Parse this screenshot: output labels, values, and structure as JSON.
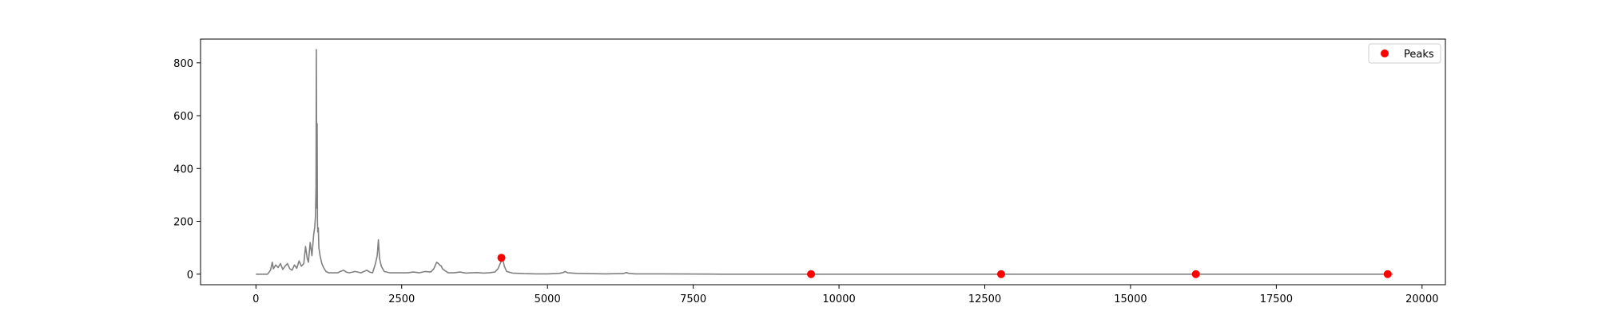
{
  "chart_data": {
    "type": "line",
    "title": "",
    "xlabel": "",
    "ylabel": "",
    "xlim": [
      -950,
      20400
    ],
    "ylim": [
      -40,
      890
    ],
    "x_ticks": [
      0,
      2500,
      5000,
      7500,
      10000,
      12500,
      15000,
      17500,
      20000
    ],
    "x_tick_labels": [
      "0",
      "2500",
      "5000",
      "7500",
      "10000",
      "12500",
      "15000",
      "17500",
      "20000"
    ],
    "y_ticks": [
      0,
      200,
      400,
      600,
      800
    ],
    "y_tick_labels": [
      "0",
      "200",
      "400",
      "600",
      "800"
    ],
    "grid": false,
    "legend": {
      "position": "top-right",
      "entries": [
        {
          "label": "Peaks",
          "marker": "circle",
          "color": "#ff0000"
        }
      ]
    },
    "series": [
      {
        "type": "line",
        "color": "#808080",
        "x": [
          0,
          200,
          250,
          280,
          300,
          340,
          380,
          420,
          460,
          500,
          540,
          580,
          620,
          660,
          700,
          740,
          780,
          820,
          850,
          880,
          900,
          930,
          960,
          990,
          1010,
          1020,
          1030,
          1035,
          1040,
          1045,
          1050,
          1055,
          1060,
          1070,
          1080,
          1100,
          1130,
          1160,
          1200,
          1250,
          1300,
          1400,
          1450,
          1500,
          1550,
          1600,
          1700,
          1800,
          1900,
          1950,
          2000,
          2050,
          2080,
          2100,
          2120,
          2150,
          2200,
          2300,
          2400,
          2500,
          2600,
          2700,
          2800,
          2900,
          3000,
          3050,
          3100,
          3130,
          3150,
          3180,
          3200,
          3250,
          3300,
          3400,
          3500,
          3600,
          3700,
          3800,
          3900,
          4000,
          4100,
          4150,
          4200,
          4230,
          4260,
          4300,
          4400,
          4600,
          4800,
          5000,
          5200,
          5270,
          5300,
          5350,
          5500,
          6000,
          6300,
          6350,
          6400,
          6500,
          7000,
          8000,
          9000,
          10000,
          12000,
          14000,
          16000,
          18000,
          19500
        ],
        "y": [
          0,
          0,
          15,
          45,
          20,
          35,
          25,
          40,
          18,
          30,
          40,
          20,
          15,
          35,
          22,
          50,
          30,
          40,
          105,
          60,
          45,
          120,
          70,
          150,
          180,
          220,
          330,
          850,
          560,
          250,
          570,
          200,
          160,
          175,
          100,
          70,
          40,
          25,
          10,
          5,
          5,
          5,
          10,
          15,
          8,
          5,
          10,
          5,
          15,
          8,
          5,
          40,
          70,
          130,
          60,
          30,
          10,
          5,
          5,
          5,
          5,
          8,
          5,
          10,
          8,
          20,
          45,
          40,
          35,
          30,
          20,
          12,
          5,
          5,
          8,
          4,
          5,
          6,
          4,
          5,
          8,
          20,
          45,
          60,
          30,
          10,
          4,
          2,
          1,
          1,
          3,
          6,
          10,
          5,
          3,
          1,
          2,
          6,
          3,
          1,
          1,
          0,
          0,
          0,
          0,
          0,
          0,
          0,
          0
        ]
      },
      {
        "type": "scatter",
        "name": "Peaks",
        "color": "#ff0000",
        "x": [
          4210,
          9520,
          12780,
          16120,
          19410
        ],
        "y": [
          62,
          0,
          0,
          0,
          0
        ]
      }
    ]
  }
}
